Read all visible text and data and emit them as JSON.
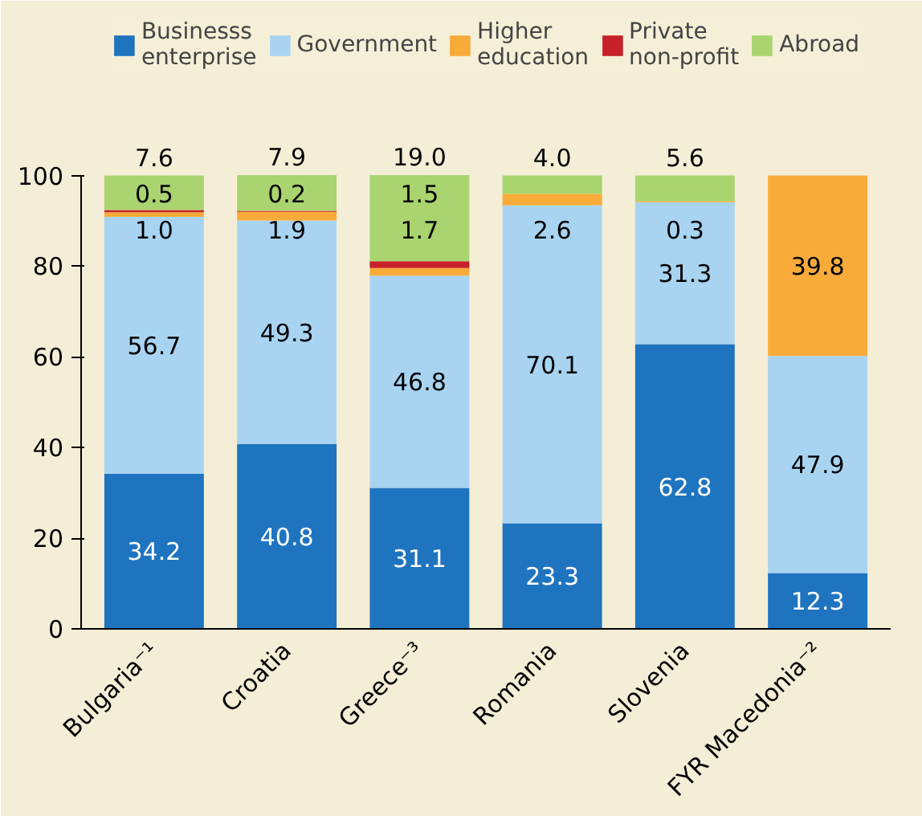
{
  "chart_data": {
    "type": "bar",
    "stacked": true,
    "categories": [
      "Bulgaria⁻¹",
      "Croatia",
      "Greece⁻³",
      "Romania",
      "Slovenia",
      "FYR Macedonia⁻²"
    ],
    "series": [
      {
        "name": "Businesss enterprise",
        "color": "#1f74c0",
        "values": [
          34.2,
          40.8,
          31.1,
          23.3,
          62.8,
          12.3
        ],
        "value_labels": [
          "34.2",
          "40.8",
          "31.1",
          "23.3",
          "62.8",
          "12.3"
        ]
      },
      {
        "name": "Government",
        "color": "#a8d4f2",
        "values": [
          56.7,
          49.3,
          46.8,
          70.1,
          31.3,
          47.9
        ],
        "value_labels": [
          "56.7",
          "49.3",
          "46.8",
          "70.1",
          "31.3",
          "47.9"
        ]
      },
      {
        "name": "Higher education",
        "color": "#f9ab3a",
        "values": [
          1.0,
          1.9,
          1.7,
          2.6,
          0.3,
          39.8
        ],
        "value_labels": [
          "1.0",
          "1.9",
          "1.7",
          "2.6",
          "0.3",
          "39.8"
        ]
      },
      {
        "name": "Private non-profit",
        "color": "#c8202a",
        "values": [
          0.5,
          0.2,
          1.5,
          null,
          null,
          null
        ],
        "value_labels": [
          "0.5",
          "0.2",
          "1.5",
          null,
          null,
          null
        ]
      },
      {
        "name": "Abroad",
        "color": "#a9d46f",
        "values": [
          7.6,
          7.9,
          19.0,
          4.0,
          5.6,
          null
        ],
        "value_labels": [
          "7.6",
          "7.9",
          "19.0",
          "4.0",
          "5.6",
          null
        ]
      }
    ],
    "ylim": [
      0,
      100
    ],
    "yticks": [
      0,
      20,
      40,
      60,
      80,
      100
    ],
    "grid": false,
    "legend": "top"
  }
}
